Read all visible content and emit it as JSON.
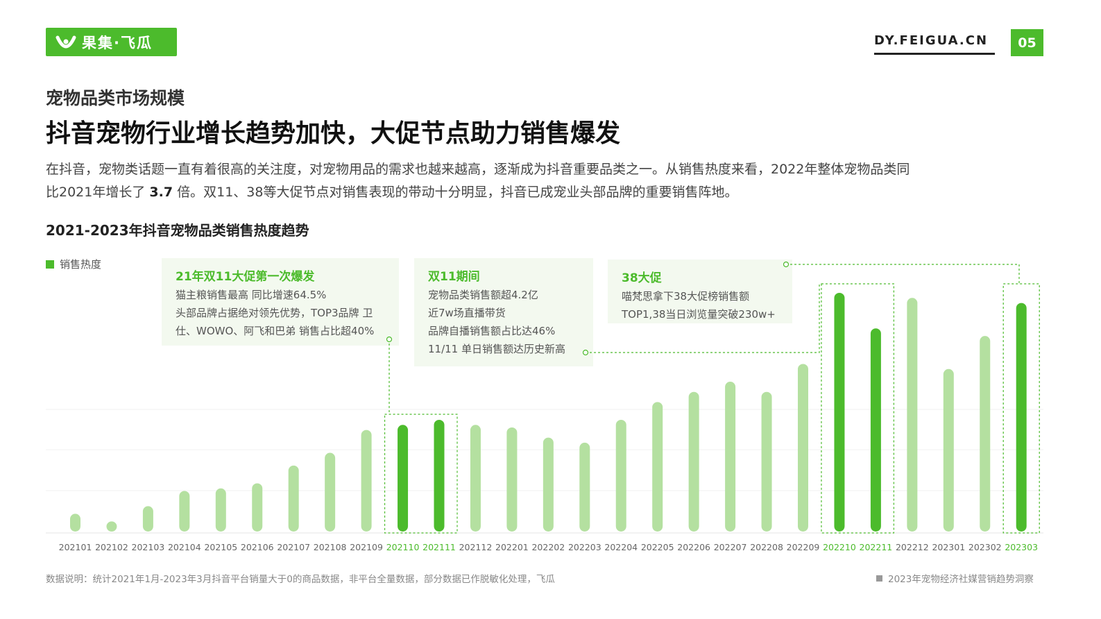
{
  "header": {
    "brand": "果集·飞瓜",
    "site": "DY.FEIGUA.CN",
    "page_number": "05",
    "accent_color": "#4cbb2c"
  },
  "section_title": "宠物品类市场规模",
  "headline": "抖音宠物行业增长趋势加快，大促节点助力销售爆发",
  "intro": {
    "line1": "在抖音，宠物类话题一直有着很高的关注度，对宠物用品的需求也越来越高，逐渐成为抖音重要品类之一。从销售热度来看，2022年整体宠物品类同",
    "line2_pre": "比2021年增长了 ",
    "line2_bold": "3.7",
    "line2_post": " 倍。双11、38等大促节点对销售表现的带动十分明显，抖音已成宠业头部品牌的重要销售阵地。"
  },
  "callouts": [
    {
      "title": "21年双11大促第一次爆发",
      "lines": [
        "猫主粮销售最高 同比增速64.5%",
        "头部品牌占据绝对领先优势，TOP3品牌 卫",
        "仕、WOWO、阿飞和巴弟 销售占比超40%"
      ]
    },
    {
      "title": "双11期间",
      "lines": [
        "宠物品类销售额超4.2亿",
        "近7w场直播带货",
        "品牌自播销售额占比达46%",
        "11/11 单日销售额达历史新高"
      ]
    },
    {
      "title": "38大促",
      "lines": [
        "喵梵思拿下38大促榜销售额",
        "TOP1,38当日浏览量突破230w+"
      ]
    }
  ],
  "footnote": "数据说明：统计2021年1月-2023年3月抖音平台销量大于0的商品数据，非平台全量数据，部分数据已作脱敏化处理，飞瓜",
  "report_name": "2023年宠物经济社媒营销趋势洞察",
  "chart_data": {
    "type": "bar",
    "title": "2021-2023年抖音宠物品类销售热度趋势",
    "legend": "销售热度",
    "legend_position": "top-left",
    "categories": [
      "202101",
      "202102",
      "202103",
      "202104",
      "202105",
      "202106",
      "202107",
      "202108",
      "202109",
      "202110",
      "202111",
      "202112",
      "202201",
      "202202",
      "202203",
      "202204",
      "202205",
      "202206",
      "202207",
      "202208",
      "202209",
      "202210",
      "202211",
      "202212",
      "202301",
      "202302",
      "202303"
    ],
    "values": [
      7,
      4,
      10,
      16,
      17,
      19,
      26,
      31,
      40,
      42,
      44,
      42,
      41,
      37,
      35,
      44,
      51,
      55,
      59,
      55,
      66,
      94,
      80,
      92,
      64,
      77,
      90
    ],
    "highlight": [
      "202110",
      "202111",
      "202210",
      "202211",
      "202303"
    ],
    "ylim": [
      0,
      100
    ],
    "y_axis_shown": false,
    "colors": {
      "normal": "#b4e0a0",
      "highlight": "#4cbb2c",
      "highlight_label": "#4cbb2c",
      "label": "#666666"
    }
  }
}
